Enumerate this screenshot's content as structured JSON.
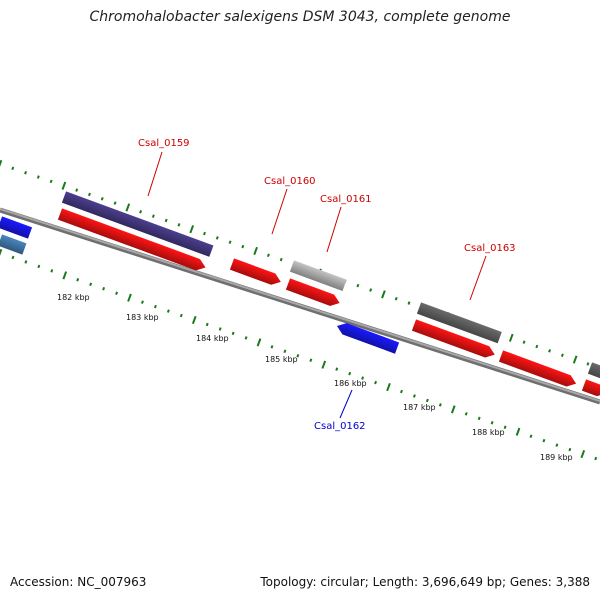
{
  "title": "Chromohalobacter salexigens DSM 3043, complete genome",
  "footer": {
    "accession": "Accession: NC_007963",
    "summary": "Topology: circular; Length: 3,696,649 bp; Genes: 3,388"
  },
  "colors": {
    "backbone": "#8c8c8c",
    "forward_tick": "#1a7a1a",
    "gene_red": "#ff1414",
    "gene_blue": "#1a1aff",
    "gene_purple": "#4b3f8f",
    "gene_grey": "#6a6a6a",
    "gene_lightgrey": "#c4c4c4",
    "gene_lightblue": "#4a86c0",
    "label_red": "#cc0000",
    "label_blue": "#0000cc"
  },
  "kbp_labels": [
    {
      "text": "182 kbp"
    },
    {
      "text": "183 kbp"
    },
    {
      "text": "184 kbp"
    },
    {
      "text": "185 kbp"
    },
    {
      "text": "186 kbp"
    },
    {
      "text": "187 kbp"
    },
    {
      "text": "188 kbp"
    },
    {
      "text": "189 kbp"
    }
  ],
  "gene_labels": [
    {
      "id": "Csal_0159",
      "text": "Csal_0159",
      "color": "label_red"
    },
    {
      "id": "Csal_0160",
      "text": "Csal_0160",
      "color": "label_red"
    },
    {
      "id": "Csal_0161",
      "text": "Csal_0161",
      "color": "label_red"
    },
    {
      "id": "Csal_0163",
      "text": "Csal_0163",
      "color": "label_red"
    },
    {
      "id": "Csal_0162",
      "text": "Csal_0162",
      "color": "label_blue"
    }
  ]
}
